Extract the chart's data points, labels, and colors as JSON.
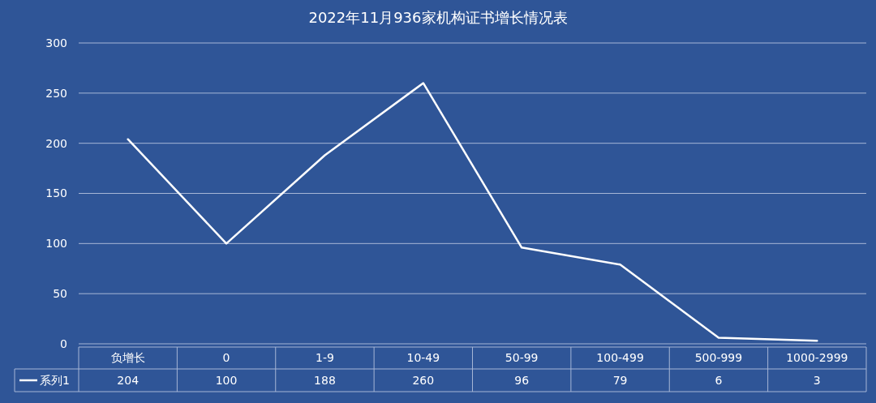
{
  "chart_data": {
    "type": "line",
    "title": "2022年11月936家机构证书增长情况表",
    "categories": [
      "负增长",
      "0",
      "1-9",
      "10-49",
      "50-99",
      "100-499",
      "500-999",
      "1000-2999"
    ],
    "series": [
      {
        "name": "系列1",
        "color": "#ffffff",
        "values": [
          204,
          100,
          188,
          260,
          96,
          79,
          6,
          3
        ]
      }
    ],
    "ylim": [
      0,
      300
    ],
    "yticks": [
      0,
      50,
      100,
      150,
      200,
      250,
      300
    ],
    "grid": "y",
    "legend": "bottom",
    "data_labels": true,
    "marker": "none",
    "line_style": "solid"
  }
}
